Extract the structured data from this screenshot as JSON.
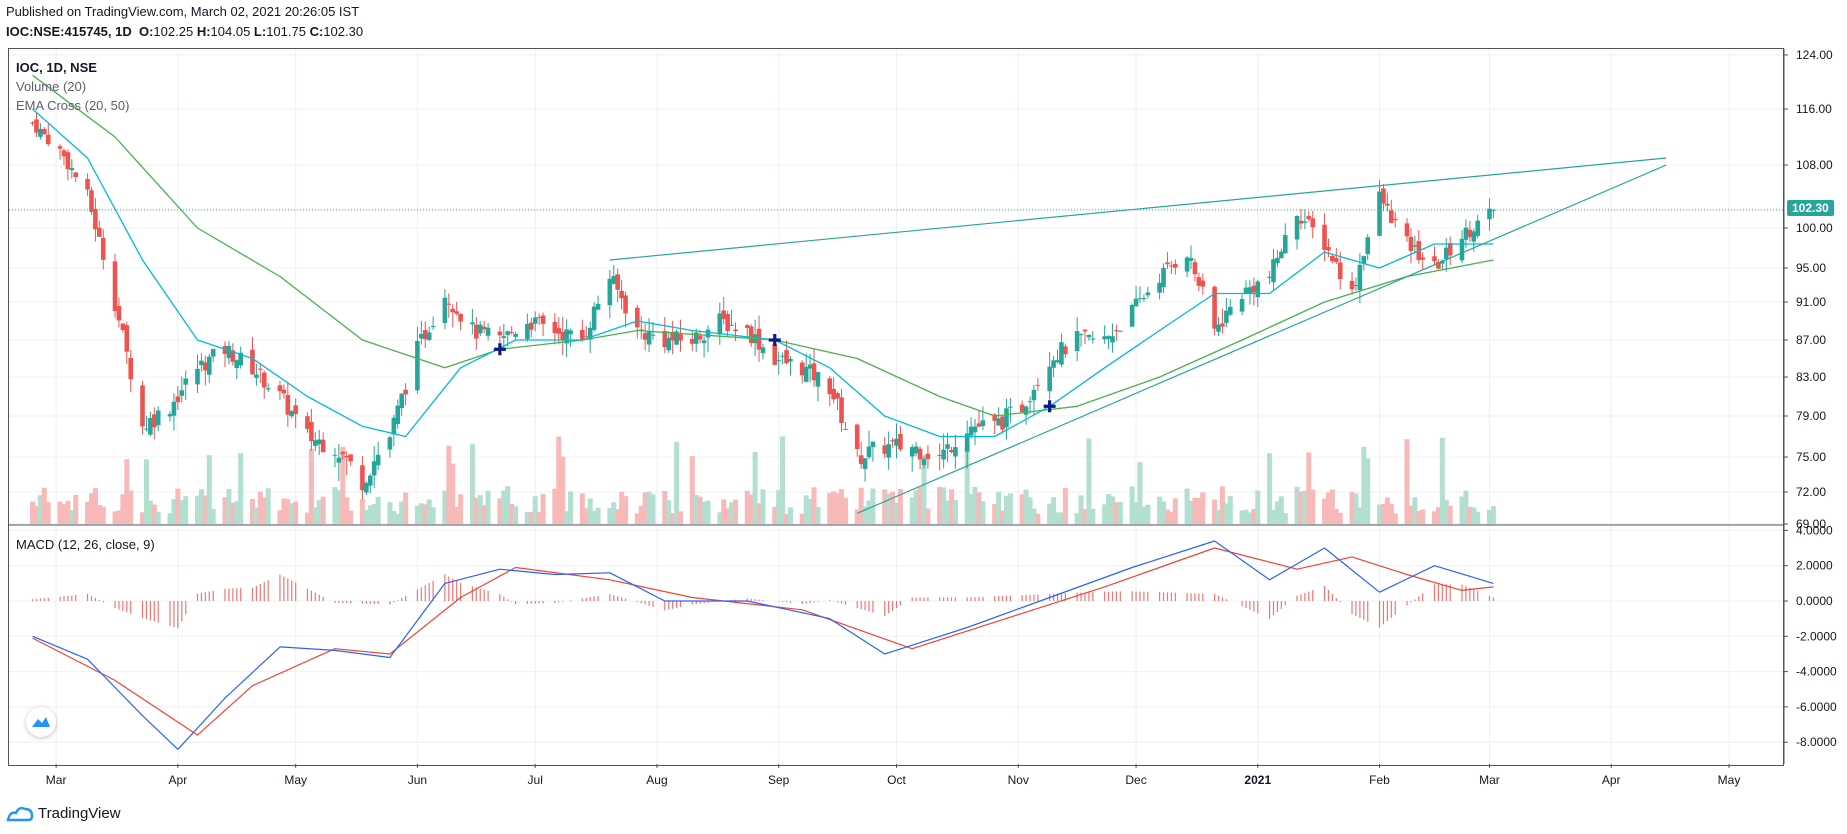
{
  "header": {
    "published": "Published on TradingView.com, March 02, 2021 20:26:05 IST",
    "symbol": "IOC:NSE:415745, 1D",
    "o_label": "O:",
    "o_value": "102.25",
    "h_label": "H:",
    "h_value": "104.05",
    "l_label": "L:",
    "l_value": "101.75",
    "c_label": "C:",
    "c_value": "102.30"
  },
  "legend": {
    "symbol": "IOC, 1D, NSE",
    "volume": "Volume (20)",
    "ema": "EMA Cross (20, 50)",
    "macd": "MACD (12, 26, close, 9)"
  },
  "last_price_tag": "102.30",
  "footer": {
    "brand": "TradingView"
  },
  "colors": {
    "up": "#26a69a",
    "down": "#ef5350",
    "vol_up": "#b2dfcf",
    "vol_down": "#f8b9b9",
    "ema20": "#00bcd4",
    "ema50": "#4caf50",
    "macd": "#2962ff",
    "signal": "#f44336",
    "hist": "#ef5350",
    "trendline": "#26a69a",
    "cross": "#0d1a8a",
    "grid": "#eef0f3"
  },
  "chart_data": [
    {
      "type": "candlestick",
      "title": "IOC, 1D, NSE",
      "x_ticks": [
        "Mar",
        "Apr",
        "May",
        "Jun",
        "Jul",
        "Aug",
        "Sep",
        "Oct",
        "Nov",
        "Dec",
        "2021",
        "Feb",
        "Mar",
        "Apr",
        "May"
      ],
      "y_ticks": [
        "124.00",
        "116.00",
        "108.00",
        "100.00",
        "95.00",
        "91.00",
        "87.00",
        "83.00",
        "79.00",
        "75.00",
        "72.00",
        "69.00"
      ],
      "ylim": [
        69,
        124
      ],
      "last_close": 102.3,
      "close_series": [
        {
          "date": "2020-02-24",
          "close": 114
        },
        {
          "date": "2020-03-02",
          "close": 110
        },
        {
          "date": "2020-03-09",
          "close": 104
        },
        {
          "date": "2020-03-16",
          "close": 91
        },
        {
          "date": "2020-03-23",
          "close": 78
        },
        {
          "date": "2020-03-30",
          "close": 80
        },
        {
          "date": "2020-04-06",
          "close": 84
        },
        {
          "date": "2020-04-13",
          "close": 86
        },
        {
          "date": "2020-04-20",
          "close": 84
        },
        {
          "date": "2020-04-27",
          "close": 81
        },
        {
          "date": "2020-05-04",
          "close": 77
        },
        {
          "date": "2020-05-11",
          "close": 76
        },
        {
          "date": "2020-05-18",
          "close": 73
        },
        {
          "date": "2020-05-25",
          "close": 77
        },
        {
          "date": "2020-06-01",
          "close": 86
        },
        {
          "date": "2020-06-08",
          "close": 92
        },
        {
          "date": "2020-06-15",
          "close": 88
        },
        {
          "date": "2020-06-22",
          "close": 87
        },
        {
          "date": "2020-06-29",
          "close": 89
        },
        {
          "date": "2020-07-06",
          "close": 88
        },
        {
          "date": "2020-07-13",
          "close": 87
        },
        {
          "date": "2020-07-20",
          "close": 94
        },
        {
          "date": "2020-07-27",
          "close": 88
        },
        {
          "date": "2020-08-03",
          "close": 87
        },
        {
          "date": "2020-08-10",
          "close": 87
        },
        {
          "date": "2020-08-17",
          "close": 89
        },
        {
          "date": "2020-08-24",
          "close": 88
        },
        {
          "date": "2020-08-31",
          "close": 85
        },
        {
          "date": "2020-09-07",
          "close": 84
        },
        {
          "date": "2020-09-14",
          "close": 82
        },
        {
          "date": "2020-09-21",
          "close": 75
        },
        {
          "date": "2020-09-28",
          "close": 76
        },
        {
          "date": "2020-10-05",
          "close": 76
        },
        {
          "date": "2020-10-12",
          "close": 75
        },
        {
          "date": "2020-10-19",
          "close": 78
        },
        {
          "date": "2020-10-26",
          "close": 78
        },
        {
          "date": "2020-11-02",
          "close": 80
        },
        {
          "date": "2020-11-09",
          "close": 85
        },
        {
          "date": "2020-11-16",
          "close": 87
        },
        {
          "date": "2020-11-23",
          "close": 87
        },
        {
          "date": "2020-11-30",
          "close": 90
        },
        {
          "date": "2020-12-07",
          "close": 94
        },
        {
          "date": "2020-12-14",
          "close": 97
        },
        {
          "date": "2020-12-21",
          "close": 88
        },
        {
          "date": "2020-12-28",
          "close": 92
        },
        {
          "date": "2021-01-04",
          "close": 94
        },
        {
          "date": "2021-01-11",
          "close": 102
        },
        {
          "date": "2021-01-18",
          "close": 98
        },
        {
          "date": "2021-01-25",
          "close": 92
        },
        {
          "date": "2021-02-01",
          "close": 104
        },
        {
          "date": "2021-02-08",
          "close": 98
        },
        {
          "date": "2021-02-15",
          "close": 95
        },
        {
          "date": "2021-02-22",
          "close": 99
        },
        {
          "date": "2021-03-02",
          "close": 102.3
        }
      ],
      "ema20_series": [
        {
          "date": "2020-02-24",
          "value": 116
        },
        {
          "date": "2020-03-09",
          "value": 109
        },
        {
          "date": "2020-03-23",
          "value": 96
        },
        {
          "date": "2020-04-06",
          "value": 87
        },
        {
          "date": "2020-04-20",
          "value": 85
        },
        {
          "date": "2020-05-04",
          "value": 81
        },
        {
          "date": "2020-05-18",
          "value": 78
        },
        {
          "date": "2020-05-29",
          "value": 77
        },
        {
          "date": "2020-06-12",
          "value": 84
        },
        {
          "date": "2020-06-26",
          "value": 87
        },
        {
          "date": "2020-07-13",
          "value": 87
        },
        {
          "date": "2020-07-27",
          "value": 89
        },
        {
          "date": "2020-08-10",
          "value": 88
        },
        {
          "date": "2020-08-31",
          "value": 87
        },
        {
          "date": "2020-09-14",
          "value": 84
        },
        {
          "date": "2020-09-28",
          "value": 79
        },
        {
          "date": "2020-10-12",
          "value": 77
        },
        {
          "date": "2020-10-26",
          "value": 77
        },
        {
          "date": "2020-11-09",
          "value": 80
        },
        {
          "date": "2020-11-23",
          "value": 84
        },
        {
          "date": "2020-12-07",
          "value": 88
        },
        {
          "date": "2020-12-21",
          "value": 92
        },
        {
          "date": "2021-01-04",
          "value": 92
        },
        {
          "date": "2021-01-18",
          "value": 97
        },
        {
          "date": "2021-02-01",
          "value": 95
        },
        {
          "date": "2021-02-15",
          "value": 98
        },
        {
          "date": "2021-03-02",
          "value": 98
        }
      ],
      "ema50_series": [
        {
          "date": "2020-02-24",
          "value": 121
        },
        {
          "date": "2020-03-16",
          "value": 112
        },
        {
          "date": "2020-04-06",
          "value": 100
        },
        {
          "date": "2020-04-27",
          "value": 94
        },
        {
          "date": "2020-05-18",
          "value": 87
        },
        {
          "date": "2020-06-08",
          "value": 84
        },
        {
          "date": "2020-06-22",
          "value": 86
        },
        {
          "date": "2020-07-13",
          "value": 87
        },
        {
          "date": "2020-07-27",
          "value": 88
        },
        {
          "date": "2020-08-31",
          "value": 87
        },
        {
          "date": "2020-09-21",
          "value": 85
        },
        {
          "date": "2020-10-12",
          "value": 81
        },
        {
          "date": "2020-10-26",
          "value": 79
        },
        {
          "date": "2020-11-16",
          "value": 80
        },
        {
          "date": "2020-12-07",
          "value": 83
        },
        {
          "date": "2020-12-28",
          "value": 87
        },
        {
          "date": "2021-01-18",
          "value": 91
        },
        {
          "date": "2021-02-08",
          "value": 94
        },
        {
          "date": "2021-03-02",
          "value": 96
        }
      ],
      "trendlines": [
        {
          "name": "upper",
          "from": {
            "date": "2020-07-20",
            "value": 96
          },
          "to": {
            "date": "2021-04-15",
            "value": 109
          }
        },
        {
          "name": "lower",
          "from": {
            "date": "2020-09-21",
            "value": 70
          },
          "to": {
            "date": "2021-04-15",
            "value": 108
          }
        }
      ],
      "ema_crosses": [
        {
          "date": "2020-06-22",
          "value": 86
        },
        {
          "date": "2020-08-31",
          "value": 87
        },
        {
          "date": "2020-11-09",
          "value": 80
        }
      ]
    },
    {
      "type": "line",
      "title": "MACD (12, 26, close, 9)",
      "y_ticks": [
        "4.0000",
        "2.0000",
        "0.0000",
        "-2.0000",
        "-4.0000",
        "-6.0000",
        "-8.0000"
      ],
      "ylim": [
        -9,
        4
      ],
      "series": [
        {
          "name": "MACD",
          "points": [
            {
              "date": "2020-02-24",
              "value": -2.0
            },
            {
              "date": "2020-03-09",
              "value": -3.3
            },
            {
              "date": "2020-03-23",
              "value": -6.5
            },
            {
              "date": "2020-04-01",
              "value": -8.4
            },
            {
              "date": "2020-04-13",
              "value": -5.5
            },
            {
              "date": "2020-04-27",
              "value": -2.6
            },
            {
              "date": "2020-05-11",
              "value": -2.8
            },
            {
              "date": "2020-05-25",
              "value": -3.2
            },
            {
              "date": "2020-06-08",
              "value": 1.0
            },
            {
              "date": "2020-06-22",
              "value": 1.8
            },
            {
              "date": "2020-07-06",
              "value": 1.5
            },
            {
              "date": "2020-07-20",
              "value": 1.6
            },
            {
              "date": "2020-08-03",
              "value": 0.0
            },
            {
              "date": "2020-08-24",
              "value": 0.0
            },
            {
              "date": "2020-09-14",
              "value": -1.0
            },
            {
              "date": "2020-09-28",
              "value": -3.0
            },
            {
              "date": "2020-10-19",
              "value": -1.5
            },
            {
              "date": "2020-11-09",
              "value": 0.2
            },
            {
              "date": "2020-11-30",
              "value": 1.9
            },
            {
              "date": "2020-12-21",
              "value": 3.4
            },
            {
              "date": "2021-01-04",
              "value": 1.2
            },
            {
              "date": "2021-01-18",
              "value": 3.0
            },
            {
              "date": "2021-02-01",
              "value": 0.5
            },
            {
              "date": "2021-02-15",
              "value": 2.0
            },
            {
              "date": "2021-03-02",
              "value": 1.0
            }
          ]
        },
        {
          "name": "Signal",
          "points": [
            {
              "date": "2020-02-24",
              "value": -2.1
            },
            {
              "date": "2020-03-16",
              "value": -4.5
            },
            {
              "date": "2020-04-06",
              "value": -7.6
            },
            {
              "date": "2020-04-20",
              "value": -4.8
            },
            {
              "date": "2020-05-11",
              "value": -2.7
            },
            {
              "date": "2020-05-25",
              "value": -3.0
            },
            {
              "date": "2020-06-12",
              "value": 0.2
            },
            {
              "date": "2020-06-26",
              "value": 1.9
            },
            {
              "date": "2020-07-20",
              "value": 1.2
            },
            {
              "date": "2020-08-10",
              "value": 0.2
            },
            {
              "date": "2020-09-07",
              "value": -0.5
            },
            {
              "date": "2020-10-05",
              "value": -2.7
            },
            {
              "date": "2020-10-26",
              "value": -1.2
            },
            {
              "date": "2020-11-23",
              "value": 0.8
            },
            {
              "date": "2020-12-21",
              "value": 3.0
            },
            {
              "date": "2021-01-11",
              "value": 1.8
            },
            {
              "date": "2021-01-25",
              "value": 2.5
            },
            {
              "date": "2021-02-08",
              "value": 1.5
            },
            {
              "date": "2021-02-22",
              "value": 0.6
            },
            {
              "date": "2021-03-02",
              "value": 0.8
            }
          ]
        }
      ]
    }
  ]
}
